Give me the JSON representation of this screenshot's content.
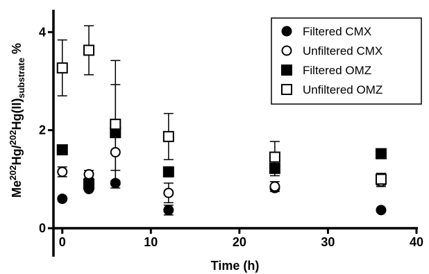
{
  "chart_data": {
    "type": "scatter",
    "title": "",
    "xlabel": "Time (h)",
    "ylabel": {
      "parts": [
        {
          "text": "Me",
          "style": "normal"
        },
        {
          "text": "202",
          "style": "sup"
        },
        {
          "text": "Hg/",
          "style": "normal"
        },
        {
          "text": "202",
          "style": "sup"
        },
        {
          "text": "Hg(II)",
          "style": "normal"
        },
        {
          "text": "substrate",
          "style": "sub"
        },
        {
          "text": " %",
          "style": "normal"
        }
      ]
    },
    "xlim": [
      -1,
      40
    ],
    "ylim": [
      0,
      4.4
    ],
    "xticks": [
      {
        "value": 0,
        "label": "0"
      },
      {
        "value": 10,
        "label": "10"
      },
      {
        "value": 20,
        "label": "20"
      },
      {
        "value": 30,
        "label": "30"
      },
      {
        "value": 40,
        "label": "40"
      }
    ],
    "yticks": [
      {
        "value": 0,
        "label": "0"
      },
      {
        "value": 2,
        "label": "2"
      },
      {
        "value": 4,
        "label": "4"
      }
    ],
    "legend_position": "top-right",
    "grid": false,
    "series": [
      {
        "name": "Filtered CMX",
        "marker": "circle",
        "fill": "filled",
        "points": [
          {
            "x": 0,
            "y": 0.6
          },
          {
            "x": 3,
            "y": 0.8
          },
          {
            "x": 6,
            "y": 0.92
          },
          {
            "x": 12,
            "y": 0.37,
            "err": 0.1
          },
          {
            "x": 24,
            "y": 0.82
          },
          {
            "x": 36,
            "y": 0.37
          }
        ]
      },
      {
        "name": "Unfiltered CMX",
        "marker": "circle",
        "fill": "open",
        "points": [
          {
            "x": 0,
            "y": 1.15,
            "err": 0.1
          },
          {
            "x": 3,
            "y": 1.1,
            "err": 0.08
          },
          {
            "x": 6,
            "y": 1.55,
            "err": 0.37
          },
          {
            "x": 12,
            "y": 0.72,
            "err": 0.2
          },
          {
            "x": 24,
            "y": 0.85,
            "err": 0.1
          },
          {
            "x": 36,
            "y": 0.95,
            "err": 0.1
          }
        ]
      },
      {
        "name": "Filtered OMZ",
        "marker": "square",
        "fill": "filled",
        "points": [
          {
            "x": 0,
            "y": 1.6
          },
          {
            "x": 3,
            "y": 0.9,
            "err": 0.05
          },
          {
            "x": 6,
            "y": 1.95,
            "err": 0.98
          },
          {
            "x": 12,
            "y": 1.15
          },
          {
            "x": 24,
            "y": 1.22,
            "err": 0.15
          },
          {
            "x": 36,
            "y": 1.52,
            "err": 0.08
          }
        ]
      },
      {
        "name": "Unfiltered OMZ",
        "marker": "square",
        "fill": "open",
        "points": [
          {
            "x": 0,
            "y": 3.27,
            "err": 0.57
          },
          {
            "x": 3,
            "y": 3.63,
            "err": 0.5
          },
          {
            "x": 6,
            "y": 2.12,
            "err": 1.3
          },
          {
            "x": 12,
            "y": 1.87,
            "err": 0.47
          },
          {
            "x": 24,
            "y": 1.45,
            "err": 0.32
          },
          {
            "x": 36,
            "y": 1.0,
            "err": 0.12
          }
        ]
      }
    ]
  }
}
